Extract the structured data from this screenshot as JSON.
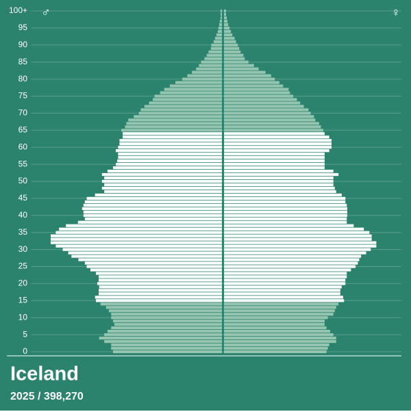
{
  "chart_data": {
    "type": "pyramid",
    "title": "Iceland",
    "subtitle": "2025  /  398,270",
    "categories": [
      "0",
      null,
      null,
      null,
      null,
      "5",
      null,
      null,
      null,
      null,
      "10",
      null,
      null,
      null,
      null,
      "15",
      null,
      null,
      null,
      null,
      "20",
      null,
      null,
      null,
      null,
      "25",
      null,
      null,
      null,
      null,
      "30",
      null,
      null,
      null,
      null,
      "35",
      null,
      null,
      null,
      null,
      "40",
      null,
      null,
      null,
      null,
      "45",
      null,
      null,
      null,
      null,
      "50",
      null,
      null,
      null,
      null,
      "55",
      null,
      null,
      null,
      null,
      "60",
      null,
      null,
      null,
      null,
      "65",
      null,
      null,
      null,
      null,
      "70",
      null,
      null,
      null,
      null,
      "75",
      null,
      null,
      null,
      null,
      "80",
      null,
      null,
      null,
      null,
      "85",
      null,
      null,
      null,
      null,
      "90",
      null,
      null,
      null,
      null,
      "95",
      null,
      null,
      null,
      null,
      "100+"
    ],
    "series": [
      {
        "name": "♂",
        "side": "left",
        "color": "#95c5b0",
        "values": [
          2360,
          2400,
          2400,
          2550,
          2660,
          2550,
          2480,
          2400,
          2330,
          2360,
          2400,
          2400,
          2450,
          2510,
          2630,
          2730,
          2750,
          2670,
          2670,
          2660,
          2700,
          2670,
          2670,
          2730,
          2850,
          2930,
          2970,
          3110,
          3260,
          3330,
          3450,
          3600,
          3710,
          3710,
          3710,
          3600,
          3530,
          3380,
          3120,
          2970,
          3000,
          3000,
          3030,
          3000,
          2970,
          2930,
          2750,
          2550,
          2600,
          2550,
          2600,
          2550,
          2600,
          2480,
          2360,
          2300,
          2270,
          2250,
          2250,
          2300,
          2250,
          2220,
          2220,
          2150,
          2150,
          2180,
          2100,
          2070,
          2030,
          1910,
          1800,
          1760,
          1680,
          1580,
          1500,
          1460,
          1340,
          1250,
          1130,
          1010,
          860,
          750,
          650,
          560,
          500,
          450,
          380,
          330,
          290,
          240,
          230,
          180,
          150,
          120,
          90,
          75,
          60,
          45,
          30,
          30,
          30
        ]
      },
      {
        "name": "♀",
        "side": "right",
        "color": "#95c5b0",
        "values": [
          2220,
          2250,
          2280,
          2430,
          2430,
          2370,
          2300,
          2220,
          2180,
          2180,
          2250,
          2370,
          2400,
          2430,
          2480,
          2600,
          2580,
          2520,
          2520,
          2550,
          2630,
          2630,
          2660,
          2660,
          2750,
          2850,
          2900,
          2930,
          2970,
          3080,
          3180,
          3300,
          3300,
          3200,
          3200,
          3150,
          3030,
          2810,
          2660,
          2660,
          2670,
          2670,
          2670,
          2660,
          2630,
          2630,
          2550,
          2430,
          2400,
          2370,
          2370,
          2370,
          2480,
          2370,
          2180,
          2180,
          2180,
          2180,
          2180,
          2280,
          2330,
          2330,
          2330,
          2280,
          2180,
          2150,
          2100,
          2060,
          1980,
          1950,
          1880,
          1830,
          1730,
          1650,
          1580,
          1500,
          1430,
          1400,
          1280,
          1200,
          1100,
          1020,
          900,
          750,
          650,
          530,
          450,
          420,
          360,
          330,
          300,
          260,
          230,
          180,
          150,
          120,
          90,
          75,
          60,
          45,
          45
        ]
      }
    ],
    "highlight": {
      "from": 15,
      "to": 64,
      "color": "#ffffff"
    },
    "background": "#2b836e",
    "grid": true
  }
}
